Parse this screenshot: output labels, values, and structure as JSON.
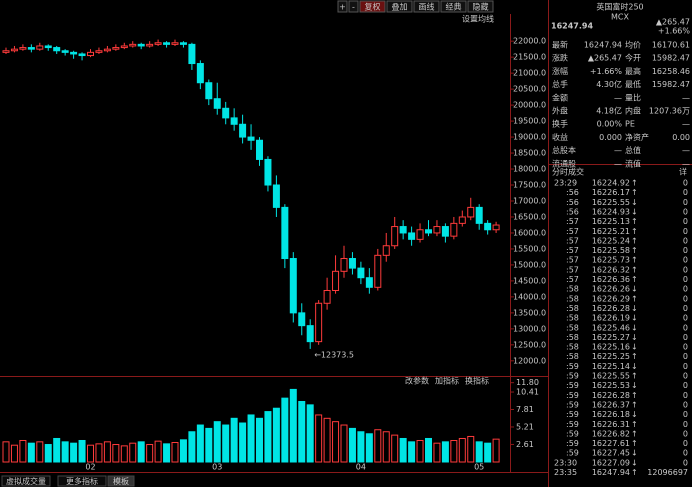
{
  "toolbar": [
    "+",
    "-",
    "复权",
    "叠加",
    "画线",
    "经典",
    "隐藏"
  ],
  "ma_setting": "设置均线",
  "chart": {
    "type": "candlestick",
    "x_labels": [
      null,
      null,
      null,
      null,
      null,
      null,
      null,
      null,
      null,
      null,
      "02",
      null,
      null,
      null,
      null,
      null,
      null,
      null,
      null,
      null,
      null,
      null,
      null,
      null,
      null,
      "03",
      null,
      null,
      null,
      null,
      null,
      null,
      null,
      null,
      null,
      null,
      null,
      null,
      null,
      null,
      null,
      null,
      "04",
      null,
      null,
      null,
      null,
      null,
      null,
      null,
      null,
      null,
      null,
      null,
      null,
      null,
      "05",
      null,
      null
    ],
    "open": [
      21650,
      21700,
      21750,
      21800,
      21750,
      21850,
      21800,
      21700,
      21650,
      21600,
      21550,
      21650,
      21700,
      21750,
      21800,
      21850,
      21900,
      21850,
      21900,
      21950,
      21900,
      21950,
      21900,
      21300,
      20700,
      20200,
      19900,
      19600,
      19400,
      19000,
      18900,
      18300,
      17500,
      16800,
      15200,
      13500,
      13100,
      12600,
      13800,
      14200,
      14800,
      15200,
      14900,
      14600,
      14300,
      15300,
      15600,
      16200,
      16000,
      15800,
      16100,
      16000,
      16200,
      15900,
      16300,
      16500,
      16800,
      16300,
      16100
    ],
    "close": [
      21700,
      21750,
      21800,
      21750,
      21850,
      21800,
      21700,
      21650,
      21600,
      21550,
      21650,
      21700,
      21750,
      21800,
      21850,
      21900,
      21850,
      21900,
      21950,
      21900,
      21950,
      21900,
      21300,
      20700,
      20200,
      19900,
      19600,
      19400,
      19000,
      18900,
      18300,
      17500,
      16800,
      15200,
      13500,
      13100,
      12600,
      13800,
      14200,
      14800,
      15200,
      14900,
      14600,
      14300,
      15300,
      15600,
      16200,
      16000,
      15800,
      16100,
      16000,
      16200,
      15900,
      16300,
      16500,
      16800,
      16300,
      16100,
      16248
    ],
    "high": [
      21800,
      21850,
      21900,
      21900,
      21950,
      21900,
      21850,
      21750,
      21700,
      21650,
      21750,
      21800,
      21850,
      21900,
      21950,
      22000,
      21950,
      22000,
      22050,
      22000,
      22050,
      22000,
      21950,
      21400,
      20800,
      20700,
      20100,
      19900,
      19700,
      19400,
      19000,
      18400,
      17800,
      16900,
      15400,
      13800,
      13300,
      13900,
      14600,
      15300,
      15600,
      15400,
      15100,
      14900,
      15500,
      16000,
      16500,
      16400,
      16200,
      16300,
      16400,
      16400,
      16300,
      16500,
      16700,
      17100,
      16900,
      16400,
      16350
    ],
    "low": [
      21600,
      21650,
      21700,
      21650,
      21700,
      21700,
      21600,
      21550,
      21450,
      21400,
      21500,
      21600,
      21650,
      21700,
      21750,
      21800,
      21750,
      21800,
      21850,
      21800,
      21850,
      21800,
      21100,
      20500,
      20000,
      19700,
      19400,
      19200,
      18800,
      18600,
      18100,
      17300,
      16500,
      14900,
      13200,
      12800,
      12373,
      12500,
      13600,
      14100,
      14600,
      14700,
      14400,
      14100,
      14200,
      15100,
      15500,
      15800,
      15600,
      15700,
      15900,
      15900,
      15700,
      15800,
      16200,
      16400,
      16100,
      15950,
      16000
    ],
    "ylim": [
      11650,
      22850
    ],
    "yticks": [
      {
        "value": 22000,
        "label": "22000.0"
      },
      {
        "value": 21500,
        "label": "21500.0"
      },
      {
        "value": 21000,
        "label": "21000.0"
      },
      {
        "value": 20500,
        "label": "20500.0"
      },
      {
        "value": 20000,
        "label": "20000.0"
      },
      {
        "value": 19500,
        "label": "19500.0"
      },
      {
        "value": 19000,
        "label": "19000.0"
      },
      {
        "value": 18500,
        "label": "18500.0"
      },
      {
        "value": 18000,
        "label": "18000.0"
      },
      {
        "value": 17500,
        "label": "17500.0"
      },
      {
        "value": 17000,
        "label": "17000.0"
      },
      {
        "value": 16500,
        "label": "16500.0"
      },
      {
        "value": 16000,
        "label": "16000.0"
      },
      {
        "value": 15500,
        "label": "15500.0"
      },
      {
        "value": 15000,
        "label": "15000.0"
      },
      {
        "value": 14500,
        "label": "14500.0"
      },
      {
        "value": 14000,
        "label": "14000.0"
      },
      {
        "value": 13500,
        "label": "13500.0"
      },
      {
        "value": 13000,
        "label": "13000.0"
      },
      {
        "value": 12500,
        "label": "12500.0"
      },
      {
        "value": 12000,
        "label": "12000.0"
      }
    ],
    "low_annotation": "←12373.5",
    "up_color": "#ff3b3b",
    "down_color": "#00e5e5"
  },
  "volume": {
    "values": [
      3,
      2.5,
      3.2,
      2.8,
      3,
      2.6,
      3.5,
      3,
      2.8,
      3.2,
      2.5,
      2.7,
      3,
      2.6,
      2.4,
      2.8,
      3,
      2.6,
      3.1,
      2.7,
      2.9,
      3.3,
      4.5,
      5.5,
      5,
      6,
      5.5,
      6.5,
      5.8,
      7,
      6.5,
      7.5,
      8,
      9.5,
      10.8,
      9,
      8.5,
      7,
      6.5,
      6,
      5.5,
      5,
      4.5,
      4.2,
      4.8,
      4.5,
      4,
      3.5,
      3,
      3.2,
      3.5,
      2.8,
      3,
      3.2,
      3.5,
      3.8,
      3,
      2.8,
      3.4
    ],
    "ylim": [
      0,
      12.2
    ],
    "yticks": [
      {
        "value": 11.8,
        "label": "11.80"
      },
      10.41,
      7.81,
      5.21,
      2.61
    ],
    "buttons": [
      "改参数",
      "加指标",
      "换指标"
    ]
  },
  "tabs": [
    "虚拟成交量",
    "更多指标",
    "模板"
  ],
  "quote": {
    "name": "英国富时250",
    "code": "MCX",
    "price": "16247.94",
    "change": "▲265.47",
    "change_pct": "+1.66%",
    "rows": [
      [
        "最新",
        "16247.94",
        "均价",
        "16170.61"
      ],
      [
        "涨跌",
        "▲265.47",
        "今开",
        "15982.47"
      ],
      [
        "涨幅",
        "+1.66%",
        "最高",
        "16258.46"
      ],
      [
        "总手",
        "4.30亿",
        "最低",
        "15982.47"
      ],
      [
        "金额",
        "—",
        "量比",
        "—"
      ],
      [
        "外盘",
        "4.18亿",
        "内盘",
        "1207.36万"
      ],
      [
        "换手",
        "0.00%",
        "PE",
        "—"
      ],
      [
        "收益",
        "0.000",
        "净资产",
        "0.00"
      ],
      [
        "总股本",
        "—",
        "总值",
        "—"
      ],
      [
        "流通股",
        "—",
        "流值",
        "—"
      ]
    ]
  },
  "ticks": {
    "title": "分时成交",
    "detail": "详",
    "rows": [
      [
        "23:29",
        "16224.92",
        "↑",
        "0"
      ],
      [
        ":56",
        "16226.17",
        "↑",
        "0"
      ],
      [
        ":56",
        "16225.55",
        "↓",
        "0"
      ],
      [
        ":56",
        "16224.93",
        "↓",
        "0"
      ],
      [
        ":57",
        "16225.13",
        "↑",
        "0"
      ],
      [
        ":57",
        "16225.21",
        "↑",
        "0"
      ],
      [
        ":57",
        "16225.24",
        "↑",
        "0"
      ],
      [
        ":57",
        "16225.58",
        "↑",
        "0"
      ],
      [
        ":57",
        "16225.73",
        "↑",
        "0"
      ],
      [
        ":57",
        "16226.32",
        "↑",
        "0"
      ],
      [
        ":57",
        "16226.36",
        "↑",
        "0"
      ],
      [
        ":58",
        "16226.26",
        "↓",
        "0"
      ],
      [
        ":58",
        "16226.29",
        "↑",
        "0"
      ],
      [
        ":58",
        "16226.28",
        "↓",
        "0"
      ],
      [
        ":58",
        "16226.19",
        "↓",
        "0"
      ],
      [
        ":58",
        "16225.46",
        "↓",
        "0"
      ],
      [
        ":58",
        "16225.27",
        "↓",
        "0"
      ],
      [
        ":58",
        "16225.16",
        "↓",
        "0"
      ],
      [
        ":58",
        "16225.25",
        "↑",
        "0"
      ],
      [
        ":59",
        "16225.14",
        "↓",
        "0"
      ],
      [
        ":59",
        "16225.55",
        "↑",
        "0"
      ],
      [
        ":59",
        "16225.53",
        "↓",
        "0"
      ],
      [
        ":59",
        "16226.28",
        "↑",
        "0"
      ],
      [
        ":59",
        "16226.37",
        "↑",
        "0"
      ],
      [
        ":59",
        "16226.18",
        "↓",
        "0"
      ],
      [
        ":59",
        "16226.31",
        "↑",
        "0"
      ],
      [
        ":59",
        "16226.82",
        "↑",
        "0"
      ],
      [
        ":59",
        "16227.61",
        "↑",
        "0"
      ],
      [
        ":59",
        "16227.45",
        "↓",
        "0"
      ],
      [
        "23:30",
        "16227.09",
        "↓",
        "0"
      ],
      [
        "23:35",
        "16247.94",
        "↑",
        "12096697"
      ]
    ]
  }
}
